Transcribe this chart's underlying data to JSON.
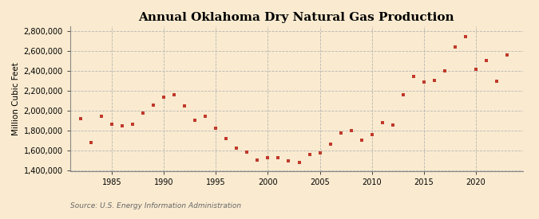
{
  "title": "Annual Oklahoma Dry Natural Gas Production",
  "ylabel": "Million Cubic Feet",
  "source": "Source: U.S. Energy Information Administration",
  "fig_background_color": "#faebd0",
  "plot_background_color": "#fdf6ec",
  "marker_color": "#c0392b",
  "grid_color": "#b0b0b0",
  "spine_color": "#888888",
  "years": [
    1982,
    1983,
    1984,
    1985,
    1986,
    1987,
    1988,
    1989,
    1990,
    1991,
    1992,
    1993,
    1994,
    1995,
    1996,
    1997,
    1998,
    1999,
    2000,
    2001,
    2002,
    2003,
    2004,
    2005,
    2006,
    2007,
    2008,
    2009,
    2010,
    2011,
    2012,
    2013,
    2014,
    2015,
    2016,
    2017,
    2018,
    2019,
    2020,
    2021,
    2022,
    2023
  ],
  "values": [
    1920000,
    1680000,
    1950000,
    1870000,
    1850000,
    1870000,
    1980000,
    2060000,
    2140000,
    2160000,
    2050000,
    1910000,
    1950000,
    1830000,
    1720000,
    1630000,
    1590000,
    1510000,
    1530000,
    1530000,
    1500000,
    1480000,
    1560000,
    1580000,
    1670000,
    1780000,
    1800000,
    1710000,
    1760000,
    1880000,
    1860000,
    2160000,
    2350000,
    2290000,
    2310000,
    2400000,
    2640000,
    2750000,
    2420000,
    2510000,
    2300000,
    2560000
  ],
  "ylim": [
    1400000,
    2850000
  ],
  "yticks": [
    1400000,
    1600000,
    1800000,
    2000000,
    2200000,
    2400000,
    2600000,
    2800000
  ],
  "xticks": [
    1985,
    1990,
    1995,
    2000,
    2005,
    2010,
    2015,
    2020
  ],
  "xlim": [
    1981,
    2024.5
  ],
  "title_fontsize": 11,
  "label_fontsize": 7.5,
  "tick_fontsize": 7,
  "source_fontsize": 6.5
}
